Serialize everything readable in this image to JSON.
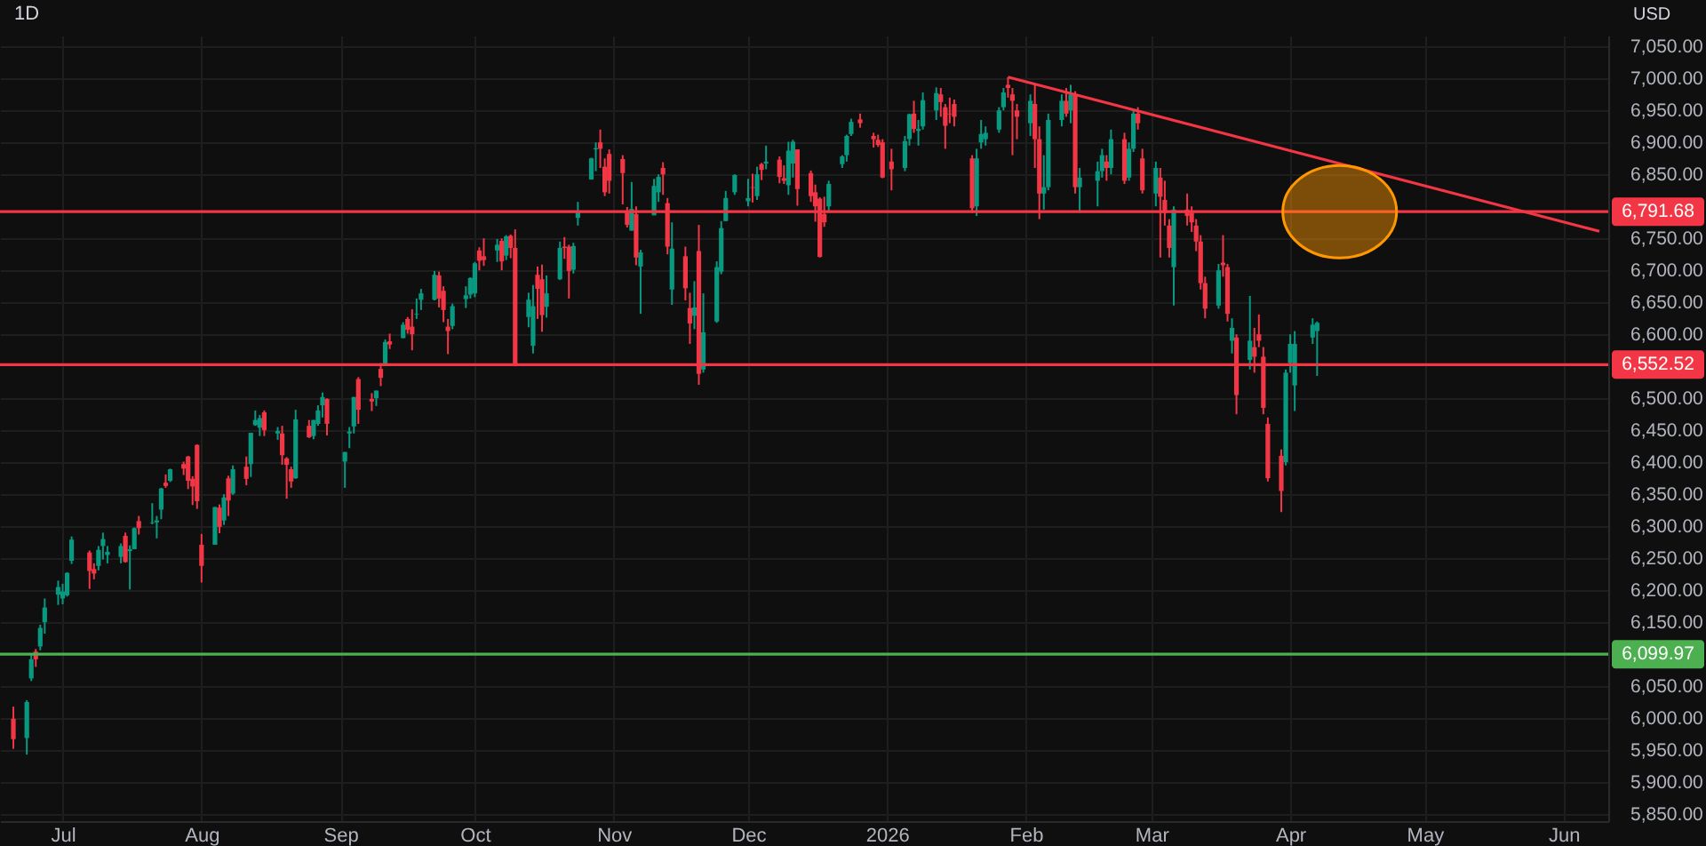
{
  "chart_data": {
    "type": "candlestick",
    "title": "1D",
    "ylabel": "USD",
    "grid": true,
    "xlim": [
      "2025-06-19",
      "2026-06-09"
    ],
    "ylim": [
      5839,
      7067
    ],
    "xticks": [
      {
        "value": "2025-07-01",
        "label": "Jul"
      },
      {
        "value": "2025-08-01",
        "label": "Aug"
      },
      {
        "value": "2025-09-01",
        "label": "Sep"
      },
      {
        "value": "2025-10-01",
        "label": "Oct"
      },
      {
        "value": "2025-11-01",
        "label": "Nov"
      },
      {
        "value": "2025-12-01",
        "label": "Dec"
      },
      {
        "value": "2026-01-01",
        "label": "2026"
      },
      {
        "value": "2026-02-01",
        "label": "Feb"
      },
      {
        "value": "2026-03-01",
        "label": "Mar"
      },
      {
        "value": "2026-04-01",
        "label": "Apr"
      },
      {
        "value": "2026-05-01",
        "label": "May"
      },
      {
        "value": "2026-06-01",
        "label": "Jun"
      }
    ],
    "yticks": [
      {
        "value": 5850,
        "label": "5,850.00"
      },
      {
        "value": 5900,
        "label": "5,900.00"
      },
      {
        "value": 5950,
        "label": "5,950.00"
      },
      {
        "value": 6000,
        "label": "6,000.00"
      },
      {
        "value": 6050,
        "label": "6,050.00"
      },
      {
        "value": 6150,
        "label": "6,150.00"
      },
      {
        "value": 6200,
        "label": "6,200.00"
      },
      {
        "value": 6250,
        "label": "6,250.00"
      },
      {
        "value": 6300,
        "label": "6,300.00"
      },
      {
        "value": 6350,
        "label": "6,350.00"
      },
      {
        "value": 6400,
        "label": "6,400.00"
      },
      {
        "value": 6450,
        "label": "6,450.00"
      },
      {
        "value": 6500,
        "label": "6,500.00"
      },
      {
        "value": 6600,
        "label": "6,600.00"
      },
      {
        "value": 6650,
        "label": "6,650.00"
      },
      {
        "value": 6700,
        "label": "6,700.00"
      },
      {
        "value": 6750,
        "label": "6,750.00"
      },
      {
        "value": 6850,
        "label": "6,850.00"
      },
      {
        "value": 6900,
        "label": "6,900.00"
      },
      {
        "value": 6950,
        "label": "6,950.00"
      },
      {
        "value": 7000,
        "label": "7,000.00"
      },
      {
        "value": 7050,
        "label": "7,050.00"
      }
    ],
    "ref_lines": [
      {
        "axis": "y",
        "value": 6791.68,
        "label": "6,791.68",
        "color": "#f23645"
      },
      {
        "axis": "y",
        "value": 6552.52,
        "label": "6,552.52",
        "color": "#f23645"
      },
      {
        "axis": "y",
        "value": 6099.97,
        "label": "6,099.97",
        "color": "#4caf50"
      }
    ],
    "series": [
      {
        "type": "candlestick",
        "color": "#089981",
        "x": [
          "2025-06-23",
          "2025-06-24",
          "2025-06-26",
          "2025-06-27",
          "2025-06-30",
          "2025-07-01",
          "2025-07-02",
          "2025-07-03",
          "2025-07-09",
          "2025-07-10",
          "2025-07-11",
          "2025-07-14",
          "2025-07-16",
          "2025-07-17",
          "2025-07-21",
          "2025-07-22",
          "2025-07-23",
          "2025-07-25",
          "2025-08-04",
          "2025-08-06",
          "2025-08-08",
          "2025-08-12",
          "2025-08-13",
          "2025-08-14",
          "2025-08-18",
          "2025-08-22",
          "2025-08-26",
          "2025-08-27",
          "2025-08-28",
          "2025-09-02",
          "2025-09-03",
          "2025-09-04",
          "2025-09-09",
          "2025-09-11",
          "2025-09-15",
          "2025-09-18",
          "2025-09-19",
          "2025-09-22",
          "2025-09-26",
          "2025-09-29",
          "2025-09-30",
          "2025-10-01",
          "2025-10-06",
          "2025-10-08",
          "2025-10-13",
          "2025-10-14",
          "2025-10-17",
          "2025-10-20",
          "2025-10-23",
          "2025-10-24",
          "2025-10-27",
          "2025-10-28",
          "2025-11-05",
          "2025-11-07",
          "2025-11-10",
          "2025-11-11",
          "2025-11-14",
          "2025-11-19",
          "2025-11-21",
          "2025-11-24",
          "2025-11-25",
          "2025-11-26",
          "2025-11-28",
          "2025-12-01",
          "2025-12-03",
          "2025-12-05",
          "2025-12-10",
          "2025-12-11",
          "2025-12-19",
          "2025-12-22",
          "2025-12-23",
          "2025-12-24",
          "2026-01-05",
          "2026-01-06",
          "2026-01-08",
          "2026-01-09",
          "2026-01-12",
          "2026-01-21",
          "2026-01-22",
          "2026-01-23",
          "2026-01-26",
          "2026-01-27",
          "2026-02-02",
          "2026-02-05",
          "2026-02-06",
          "2026-02-09",
          "2026-02-11",
          "2026-02-13",
          "2026-02-17",
          "2026-02-18",
          "2026-02-20",
          "2026-02-24",
          "2026-02-25",
          "2026-03-02",
          "2026-03-06",
          "2026-03-16",
          "2026-03-19",
          "2026-03-23",
          "2026-03-31",
          "2026-04-01",
          "2026-04-02",
          "2026-04-06",
          "2026-04-07"
        ],
        "ohlc": [
          [
            5969,
            6028,
            5943,
            6025
          ],
          [
            6062,
            6101,
            6058,
            6092
          ],
          [
            6112,
            6146,
            6106,
            6141
          ],
          [
            6150,
            6187,
            6132,
            6173
          ],
          [
            6193,
            6215,
            6177,
            6205
          ],
          [
            6187,
            6210,
            6178,
            6198
          ],
          [
            6192,
            6228,
            6190,
            6227
          ],
          [
            6246,
            6284,
            6241,
            6279
          ],
          [
            6238,
            6269,
            6231,
            6263
          ],
          [
            6269,
            6290,
            6248,
            6280
          ],
          [
            6255,
            6269,
            6242,
            6260
          ],
          [
            6252,
            6273,
            6242,
            6269
          ],
          [
            6261,
            6270,
            6201,
            6264
          ],
          [
            6264,
            6298,
            6264,
            6297
          ],
          [
            6305,
            6336,
            6303,
            6306
          ],
          [
            6306,
            6316,
            6281,
            6309
          ],
          [
            6326,
            6360,
            6311,
            6359
          ],
          [
            6371,
            6390,
            6369,
            6389
          ],
          [
            6271,
            6330,
            6271,
            6330
          ],
          [
            6309,
            6350,
            6302,
            6345
          ],
          [
            6351,
            6395,
            6349,
            6389
          ],
          [
            6397,
            6446,
            6377,
            6446
          ],
          [
            6458,
            6481,
            6457,
            6466
          ],
          [
            6454,
            6474,
            6441,
            6469
          ],
          [
            6445,
            6455,
            6435,
            6449
          ],
          [
            6375,
            6482,
            6374,
            6467
          ],
          [
            6441,
            6466,
            6436,
            6466
          ],
          [
            6460,
            6489,
            6457,
            6481
          ],
          [
            6489,
            6509,
            6470,
            6502
          ],
          [
            6401,
            6416,
            6360,
            6416
          ],
          [
            6445,
            6455,
            6422,
            6448
          ],
          [
            6456,
            6502,
            6445,
            6502
          ],
          [
            6500,
            6512,
            6488,
            6512
          ],
          [
            6554,
            6592,
            6552,
            6588
          ],
          [
            6594,
            6619,
            6594,
            6615
          ],
          [
            6631,
            6656,
            6624,
            6632
          ],
          [
            6654,
            6671,
            6638,
            6664
          ],
          [
            6654,
            6699,
            6653,
            6693
          ],
          [
            6613,
            6648,
            6608,
            6644
          ],
          [
            6655,
            6675,
            6641,
            6661
          ],
          [
            6662,
            6689,
            6656,
            6688
          ],
          [
            6664,
            6713,
            6658,
            6711
          ],
          [
            6731,
            6749,
            6713,
            6740
          ],
          [
            6723,
            6755,
            6716,
            6753
          ],
          [
            6627,
            6665,
            6611,
            6654
          ],
          [
            6582,
            6677,
            6570,
            6644
          ],
          [
            6643,
            6692,
            6626,
            6664
          ],
          [
            6686,
            6745,
            6685,
            6735
          ],
          [
            6701,
            6743,
            6695,
            6738
          ],
          [
            6782,
            6807,
            6770,
            6792
          ],
          [
            6842,
            6876,
            6842,
            6875
          ],
          [
            6889,
            6900,
            6855,
            6891
          ],
          [
            6762,
            6838,
            6762,
            6796
          ],
          [
            6706,
            6732,
            6632,
            6728
          ],
          [
            6786,
            6843,
            6786,
            6832
          ],
          [
            6822,
            6850,
            6807,
            6846
          ],
          [
            6670,
            6775,
            6646,
            6734
          ],
          [
            6629,
            6683,
            6608,
            6642
          ],
          [
            6545,
            6664,
            6540,
            6603
          ],
          [
            6620,
            6714,
            6618,
            6705
          ],
          [
            6698,
            6777,
            6694,
            6766
          ],
          [
            6777,
            6824,
            6777,
            6813
          ],
          [
            6822,
            6850,
            6818,
            6849
          ],
          [
            6808,
            6843,
            6800,
            6813
          ],
          [
            6816,
            6862,
            6810,
            6850
          ],
          [
            6867,
            6895,
            6858,
            6870
          ],
          [
            6833,
            6901,
            6818,
            6887
          ],
          [
            6867,
            6904,
            6845,
            6901
          ],
          [
            6800,
            6840,
            6790,
            6835
          ],
          [
            6866,
            6880,
            6860,
            6878
          ],
          [
            6880,
            6912,
            6870,
            6910
          ],
          [
            6913,
            6937,
            6910,
            6932
          ],
          [
            6860,
            6910,
            6855,
            6902
          ],
          [
            6905,
            6945,
            6895,
            6944
          ],
          [
            6918,
            6935,
            6895,
            6921
          ],
          [
            6925,
            6978,
            6920,
            6966
          ],
          [
            6950,
            6986,
            6935,
            6977
          ],
          [
            6800,
            6890,
            6785,
            6875
          ],
          [
            6900,
            6935,
            6890,
            6913
          ],
          [
            6905,
            6925,
            6895,
            6915
          ],
          [
            6920,
            6955,
            6915,
            6950
          ],
          [
            6955,
            6985,
            6950,
            6978
          ],
          [
            6930,
            6975,
            6910,
            6965
          ],
          [
            6820,
            6880,
            6795,
            6830
          ],
          [
            6830,
            6945,
            6825,
            6935
          ],
          [
            6935,
            6975,
            6925,
            6965
          ],
          [
            6950,
            6990,
            6930,
            6975
          ],
          [
            6830,
            6860,
            6790,
            6845
          ],
          [
            6840,
            6870,
            6800,
            6855
          ],
          [
            6855,
            6890,
            6845,
            6880
          ],
          [
            6860,
            6920,
            6850,
            6905
          ],
          [
            6845,
            6900,
            6840,
            6890
          ],
          [
            6890,
            6950,
            6885,
            6945
          ],
          [
            6820,
            6870,
            6800,
            6860
          ],
          [
            6705,
            6800,
            6645,
            6795
          ],
          [
            6645,
            6710,
            6640,
            6700
          ],
          [
            6590,
            6625,
            6570,
            6610
          ],
          [
            6560,
            6660,
            6545,
            6590
          ],
          [
            6400,
            6545,
            6395,
            6540
          ],
          [
            6555,
            6600,
            6540,
            6585
          ],
          [
            6520,
            6605,
            6480,
            6585
          ],
          [
            6595,
            6625,
            6585,
            6615
          ],
          [
            6605,
            6620,
            6535,
            6618
          ]
        ]
      },
      {
        "type": "candlestick",
        "color": "#f23645",
        "x": [
          "2025-06-20",
          "2025-06-25",
          "2025-07-07",
          "2025-07-08",
          "2025-07-15",
          "2025-07-18",
          "2025-07-24",
          "2025-07-28",
          "2025-07-29",
          "2025-07-30",
          "2025-07-31",
          "2025-08-01",
          "2025-08-05",
          "2025-08-07",
          "2025-08-11",
          "2025-08-15",
          "2025-08-19",
          "2025-08-20",
          "2025-08-21",
          "2025-08-25",
          "2025-08-29",
          "2025-09-05",
          "2025-09-08",
          "2025-09-10",
          "2025-09-12",
          "2025-09-16",
          "2025-09-17",
          "2025-09-23",
          "2025-09-24",
          "2025-09-25",
          "2025-10-02",
          "2025-10-03",
          "2025-10-07",
          "2025-10-09",
          "2025-10-10",
          "2025-10-15",
          "2025-10-16",
          "2025-10-21",
          "2025-10-22",
          "2025-10-29",
          "2025-10-30",
          "2025-10-31",
          "2025-11-03",
          "2025-11-04",
          "2025-11-06",
          "2025-11-12",
          "2025-11-13",
          "2025-11-17",
          "2025-11-18",
          "2025-11-20",
          "2025-12-02",
          "2025-12-04",
          "2025-12-08",
          "2025-12-09",
          "2025-12-12",
          "2025-12-15",
          "2025-12-16",
          "2025-12-17",
          "2025-12-18",
          "2025-12-26",
          "2025-12-29",
          "2025-12-30",
          "2025-12-31",
          "2026-01-02",
          "2026-01-07",
          "2026-01-13",
          "2026-01-14",
          "2026-01-15",
          "2026-01-16",
          "2026-01-20",
          "2026-01-28",
          "2026-01-29",
          "2026-01-30",
          "2026-02-03",
          "2026-02-04",
          "2026-02-10",
          "2026-02-12",
          "2026-02-19",
          "2026-02-23",
          "2026-02-26",
          "2026-02-27",
          "2026-03-03",
          "2026-03-04",
          "2026-03-05",
          "2026-03-09",
          "2026-03-10",
          "2026-03-11",
          "2026-03-12",
          "2026-03-13",
          "2026-03-17",
          "2026-03-18",
          "2026-03-20",
          "2026-03-24",
          "2026-03-25",
          "2026-03-26",
          "2026-03-27",
          "2026-03-30"
        ],
        "ohlc": [
          [
            5999,
            6018,
            5952,
            5967
          ],
          [
            6104,
            6108,
            6080,
            6092
          ],
          [
            6259,
            6262,
            6202,
            6230
          ],
          [
            6233,
            6242,
            6217,
            6226
          ],
          [
            6285,
            6290,
            6243,
            6244
          ],
          [
            6308,
            6316,
            6287,
            6297
          ],
          [
            6368,
            6381,
            6360,
            6363
          ],
          [
            6397,
            6401,
            6380,
            6390
          ],
          [
            6409,
            6410,
            6358,
            6371
          ],
          [
            6374,
            6378,
            6333,
            6362
          ],
          [
            6427,
            6428,
            6327,
            6339
          ],
          [
            6271,
            6288,
            6212,
            6238
          ],
          [
            6329,
            6334,
            6289,
            6299
          ],
          [
            6375,
            6379,
            6316,
            6340
          ],
          [
            6393,
            6409,
            6364,
            6374
          ],
          [
            6478,
            6481,
            6441,
            6450
          ],
          [
            6445,
            6457,
            6396,
            6411
          ],
          [
            6406,
            6408,
            6343,
            6396
          ],
          [
            6389,
            6393,
            6360,
            6370
          ],
          [
            6457,
            6466,
            6438,
            6439
          ],
          [
            6499,
            6500,
            6442,
            6460
          ],
          [
            6530,
            6533,
            6460,
            6482
          ],
          [
            6499,
            6508,
            6480,
            6495
          ],
          [
            6546,
            6555,
            6519,
            6532
          ],
          [
            6589,
            6601,
            6577,
            6584
          ],
          [
            6624,
            6627,
            6601,
            6607
          ],
          [
            6612,
            6639,
            6575,
            6600
          ],
          [
            6692,
            6698,
            6642,
            6656
          ],
          [
            6668,
            6675,
            6619,
            6638
          ],
          [
            6612,
            6624,
            6569,
            6605
          ],
          [
            6731,
            6736,
            6700,
            6715
          ],
          [
            6722,
            6750,
            6707,
            6716
          ],
          [
            6746,
            6750,
            6700,
            6714
          ],
          [
            6754,
            6756,
            6719,
            6735
          ],
          [
            6735,
            6764,
            6550,
            6552
          ],
          [
            6693,
            6706,
            6624,
            6671
          ],
          [
            6686,
            6709,
            6604,
            6630
          ],
          [
            6737,
            6752,
            6718,
            6735
          ],
          [
            6737,
            6740,
            6656,
            6699
          ],
          [
            6900,
            6920,
            6860,
            6890
          ],
          [
            6862,
            6875,
            6816,
            6822
          ],
          [
            6882,
            6889,
            6820,
            6840
          ],
          [
            6874,
            6880,
            6803,
            6852
          ],
          [
            6793,
            6799,
            6767,
            6771
          ],
          [
            6788,
            6800,
            6708,
            6720
          ],
          [
            6860,
            6869,
            6818,
            6850
          ],
          [
            6805,
            6813,
            6725,
            6737
          ],
          [
            6722,
            6737,
            6653,
            6672
          ],
          [
            6641,
            6665,
            6585,
            6617
          ],
          [
            6730,
            6771,
            6521,
            6538
          ],
          [
            6830,
            6851,
            6806,
            6829
          ],
          [
            6866,
            6868,
            6841,
            6857
          ],
          [
            6873,
            6878,
            6836,
            6846
          ],
          [
            6844,
            6864,
            6835,
            6840
          ],
          [
            6889,
            6889,
            6801,
            6827
          ],
          [
            6852,
            6856,
            6807,
            6816
          ],
          [
            6822,
            6834,
            6776,
            6800
          ],
          [
            6812,
            6814,
            6720,
            6721
          ],
          [
            6788,
            6815,
            6768,
            6775
          ],
          [
            6936,
            6945,
            6923,
            6930
          ],
          [
            6910,
            6915,
            6892,
            6905
          ],
          [
            6904,
            6912,
            6893,
            6896
          ],
          [
            6900,
            6905,
            6844,
            6845
          ],
          [
            6870,
            6890,
            6825,
            6858
          ],
          [
            6945,
            6965,
            6915,
            6921
          ],
          [
            6975,
            6985,
            6940,
            6963
          ],
          [
            6955,
            6960,
            6890,
            6926
          ],
          [
            6945,
            6970,
            6930,
            6944
          ],
          [
            6960,
            6967,
            6925,
            6940
          ],
          [
            6875,
            6880,
            6790,
            6797
          ],
          [
            6990,
            7002,
            6970,
            6985
          ],
          [
            6975,
            6985,
            6880,
            6965
          ],
          [
            6950,
            6960,
            6905,
            6940
          ],
          [
            6960,
            6990,
            6860,
            6905
          ],
          [
            6905,
            6925,
            6780,
            6820
          ],
          [
            6965,
            6985,
            6940,
            6945
          ],
          [
            6975,
            6980,
            6820,
            6830
          ],
          [
            6870,
            6880,
            6840,
            6860
          ],
          [
            6905,
            6915,
            6835,
            6840
          ],
          [
            6945,
            6955,
            6920,
            6930
          ],
          [
            6875,
            6890,
            6820,
            6825
          ],
          [
            6845,
            6860,
            6720,
            6815
          ],
          [
            6810,
            6840,
            6770,
            6790
          ],
          [
            6770,
            6780,
            6720,
            6735
          ],
          [
            6795,
            6820,
            6770,
            6785
          ],
          [
            6790,
            6800,
            6760,
            6775
          ],
          [
            6770,
            6780,
            6730,
            6745
          ],
          [
            6745,
            6755,
            6670,
            6680
          ],
          [
            6680,
            6690,
            6625,
            6640
          ],
          [
            6712,
            6755,
            6690,
            6708
          ],
          [
            6705,
            6710,
            6620,
            6632
          ],
          [
            6595,
            6600,
            6475,
            6505
          ],
          [
            6580,
            6610,
            6540,
            6565
          ],
          [
            6600,
            6631,
            6580,
            6590
          ],
          [
            6565,
            6580,
            6475,
            6485
          ],
          [
            6460,
            6470,
            6370,
            6375
          ],
          [
            6410,
            6420,
            6322,
            6355
          ]
        ]
      },
      {
        "type": "line",
        "color": "#f23645",
        "x": [
          "2026-01-28",
          "2026-06-09"
        ],
        "values": [
          7002,
          6761
        ]
      }
    ]
  }
}
